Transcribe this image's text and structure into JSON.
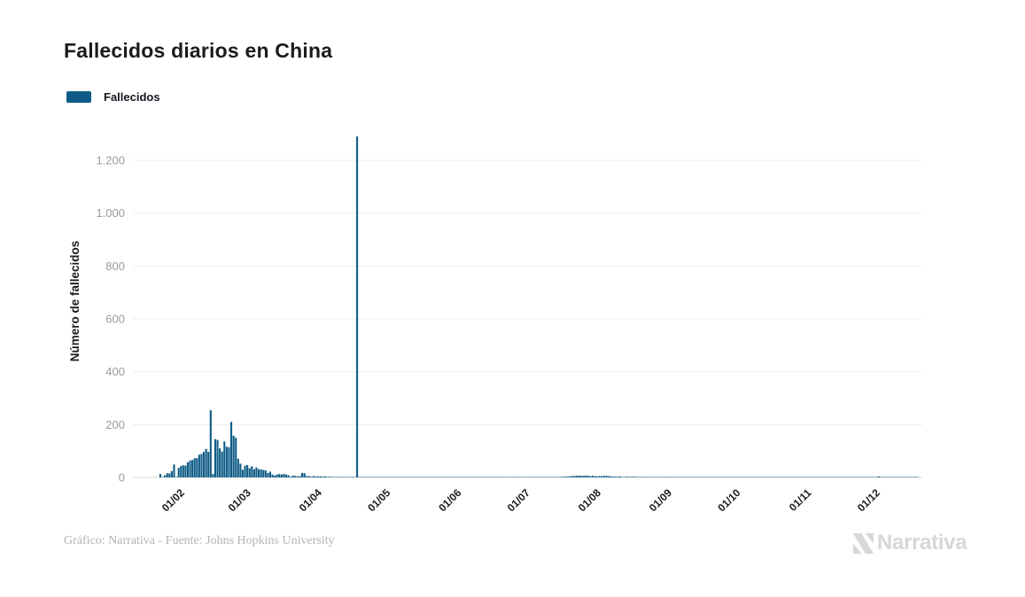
{
  "header": {
    "title": "Fallecidos diarios en China"
  },
  "legend": {
    "label": "Fallecidos",
    "swatch_color": "#0e5c86"
  },
  "footer": {
    "credit": "Gráfico: Narrativa - Fuente: Johns Hopkins University"
  },
  "logo": {
    "text": "Narrativa"
  },
  "chart_data": {
    "type": "bar",
    "title": "Fallecidos diarios en China",
    "series_name": "Fallecidos",
    "xlabel": "",
    "ylabel": "Número de fallecidos",
    "bar_color": "#0e5c86",
    "grid": true,
    "legend_position": "top-left",
    "ylim": [
      0,
      1320
    ],
    "y_ticks": [
      {
        "value": 0,
        "label": "0"
      },
      {
        "value": 200,
        "label": "200"
      },
      {
        "value": 400,
        "label": "400"
      },
      {
        "value": 600,
        "label": "600"
      },
      {
        "value": 800,
        "label": "800"
      },
      {
        "value": 1000,
        "label": "1.000"
      },
      {
        "value": 1200,
        "label": "1.200"
      }
    ],
    "x_domain": [
      "2020-01-10",
      "2020-12-20"
    ],
    "x_data_range": [
      "2020-01-22",
      "2020-12-18"
    ],
    "x_ticks": [
      {
        "date": "2020-02-01",
        "label": "01/02"
      },
      {
        "date": "2020-03-01",
        "label": "01/03"
      },
      {
        "date": "2020-04-01",
        "label": "01/04"
      },
      {
        "date": "2020-05-01",
        "label": "01/05"
      },
      {
        "date": "2020-06-01",
        "label": "01/06"
      },
      {
        "date": "2020-07-01",
        "label": "01/07"
      },
      {
        "date": "2020-08-01",
        "label": "01/08"
      },
      {
        "date": "2020-09-01",
        "label": "01/09"
      },
      {
        "date": "2020-10-01",
        "label": "01/10"
      },
      {
        "date": "2020-11-01",
        "label": "01/11"
      },
      {
        "date": "2020-12-01",
        "label": "01/12"
      }
    ],
    "points": [
      [
        "2020-01-22",
        13
      ],
      [
        "2020-01-23",
        1
      ],
      [
        "2020-01-24",
        8
      ],
      [
        "2020-01-25",
        16
      ],
      [
        "2020-01-26",
        15
      ],
      [
        "2020-01-27",
        24
      ],
      [
        "2020-01-28",
        49
      ],
      [
        "2020-01-29",
        2
      ],
      [
        "2020-01-30",
        36
      ],
      [
        "2020-01-31",
        43
      ],
      [
        "2020-02-01",
        46
      ],
      [
        "2020-02-02",
        45
      ],
      [
        "2020-02-03",
        57
      ],
      [
        "2020-02-04",
        64
      ],
      [
        "2020-02-05",
        66
      ],
      [
        "2020-02-06",
        73
      ],
      [
        "2020-02-07",
        73
      ],
      [
        "2020-02-08",
        86
      ],
      [
        "2020-02-09",
        89
      ],
      [
        "2020-02-10",
        97
      ],
      [
        "2020-02-11",
        108
      ],
      [
        "2020-02-12",
        97
      ],
      [
        "2020-02-13",
        254
      ],
      [
        "2020-02-14",
        13
      ],
      [
        "2020-02-15",
        145
      ],
      [
        "2020-02-16",
        142
      ],
      [
        "2020-02-17",
        110
      ],
      [
        "2020-02-18",
        98
      ],
      [
        "2020-02-19",
        136
      ],
      [
        "2020-02-20",
        116
      ],
      [
        "2020-02-21",
        114
      ],
      [
        "2020-02-22",
        210
      ],
      [
        "2020-02-23",
        158
      ],
      [
        "2020-02-24",
        150
      ],
      [
        "2020-02-25",
        71
      ],
      [
        "2020-02-26",
        52
      ],
      [
        "2020-02-27",
        29
      ],
      [
        "2020-02-28",
        44
      ],
      [
        "2020-02-29",
        47
      ],
      [
        "2020-03-01",
        35
      ],
      [
        "2020-03-02",
        42
      ],
      [
        "2020-03-03",
        31
      ],
      [
        "2020-03-04",
        38
      ],
      [
        "2020-03-05",
        31
      ],
      [
        "2020-03-06",
        30
      ],
      [
        "2020-03-07",
        28
      ],
      [
        "2020-03-08",
        27
      ],
      [
        "2020-03-09",
        17
      ],
      [
        "2020-03-10",
        22
      ],
      [
        "2020-03-11",
        11
      ],
      [
        "2020-03-12",
        7
      ],
      [
        "2020-03-13",
        11
      ],
      [
        "2020-03-14",
        13
      ],
      [
        "2020-03-15",
        11
      ],
      [
        "2020-03-16",
        13
      ],
      [
        "2020-03-17",
        11
      ],
      [
        "2020-03-18",
        8
      ],
      [
        "2020-03-19",
        3
      ],
      [
        "2020-03-20",
        7
      ],
      [
        "2020-03-21",
        6
      ],
      [
        "2020-03-22",
        4
      ],
      [
        "2020-03-23",
        5
      ],
      [
        "2020-03-24",
        17
      ],
      [
        "2020-03-25",
        16
      ],
      [
        "2020-03-26",
        5
      ],
      [
        "2020-03-27",
        5
      ],
      [
        "2020-03-28",
        3
      ],
      [
        "2020-03-29",
        5
      ],
      [
        "2020-03-30",
        4
      ],
      [
        "2020-03-31",
        4
      ],
      [
        "2020-04-01",
        4
      ],
      [
        "2020-04-02",
        3
      ],
      [
        "2020-04-03",
        4
      ],
      [
        "2020-04-04",
        2
      ],
      [
        "2020-04-05",
        3
      ],
      [
        "2020-04-06",
        2
      ],
      [
        "2020-04-07",
        2
      ],
      [
        "2020-04-08",
        2
      ],
      [
        "2020-04-09",
        1
      ],
      [
        "2020-04-10",
        2
      ],
      [
        "2020-04-11",
        1
      ],
      [
        "2020-04-12",
        2
      ],
      [
        "2020-04-13",
        1
      ],
      [
        "2020-04-14",
        1
      ],
      [
        "2020-04-15",
        1
      ],
      [
        "2020-04-16",
        1
      ],
      [
        "2020-04-17",
        1290
      ],
      [
        "2020-04-18",
        2
      ],
      [
        "2020-04-19",
        1
      ],
      [
        "2020-07-11",
        1
      ],
      [
        "2020-07-12",
        1
      ],
      [
        "2020-07-13",
        2
      ],
      [
        "2020-07-14",
        2
      ],
      [
        "2020-07-15",
        2
      ],
      [
        "2020-07-16",
        3
      ],
      [
        "2020-07-17",
        3
      ],
      [
        "2020-07-18",
        3
      ],
      [
        "2020-07-19",
        4
      ],
      [
        "2020-07-20",
        5
      ],
      [
        "2020-07-21",
        6
      ],
      [
        "2020-07-22",
        6
      ],
      [
        "2020-07-23",
        7
      ],
      [
        "2020-07-24",
        6
      ],
      [
        "2020-07-25",
        6
      ],
      [
        "2020-07-26",
        7
      ],
      [
        "2020-07-27",
        6
      ],
      [
        "2020-07-28",
        5
      ],
      [
        "2020-07-29",
        6
      ],
      [
        "2020-07-30",
        5
      ],
      [
        "2020-07-31",
        4
      ],
      [
        "2020-08-01",
        5
      ],
      [
        "2020-08-02",
        5
      ],
      [
        "2020-08-03",
        6
      ],
      [
        "2020-08-04",
        6
      ],
      [
        "2020-08-05",
        5
      ],
      [
        "2020-08-06",
        4
      ],
      [
        "2020-08-07",
        3
      ],
      [
        "2020-08-08",
        3
      ],
      [
        "2020-08-09",
        3
      ],
      [
        "2020-08-10",
        4
      ],
      [
        "2020-08-11",
        2
      ],
      [
        "2020-08-12",
        2
      ],
      [
        "2020-08-13",
        3
      ],
      [
        "2020-08-14",
        2
      ],
      [
        "2020-08-15",
        2
      ],
      [
        "2020-08-16",
        3
      ],
      [
        "2020-08-17",
        2
      ],
      [
        "2020-08-18",
        2
      ],
      [
        "2020-08-19",
        2
      ],
      [
        "2020-08-20",
        1
      ],
      [
        "2020-08-21",
        1
      ],
      [
        "2020-08-22",
        2
      ],
      [
        "2020-08-23",
        1
      ],
      [
        "2020-08-24",
        2
      ],
      [
        "2020-08-25",
        1
      ],
      [
        "2020-08-26",
        1
      ],
      [
        "2020-08-27",
        2
      ],
      [
        "2020-08-28",
        1
      ],
      [
        "2020-08-29",
        1
      ],
      [
        "2020-08-30",
        2
      ],
      [
        "2020-08-31",
        1
      ],
      [
        "2020-09-01",
        2
      ],
      [
        "2020-09-02",
        1
      ],
      [
        "2020-09-03",
        1
      ],
      [
        "2020-09-04",
        1
      ],
      [
        "2020-09-05",
        2
      ],
      [
        "2020-09-06",
        1
      ],
      [
        "2020-09-07",
        1
      ],
      [
        "2020-12-01",
        4
      ]
    ]
  }
}
